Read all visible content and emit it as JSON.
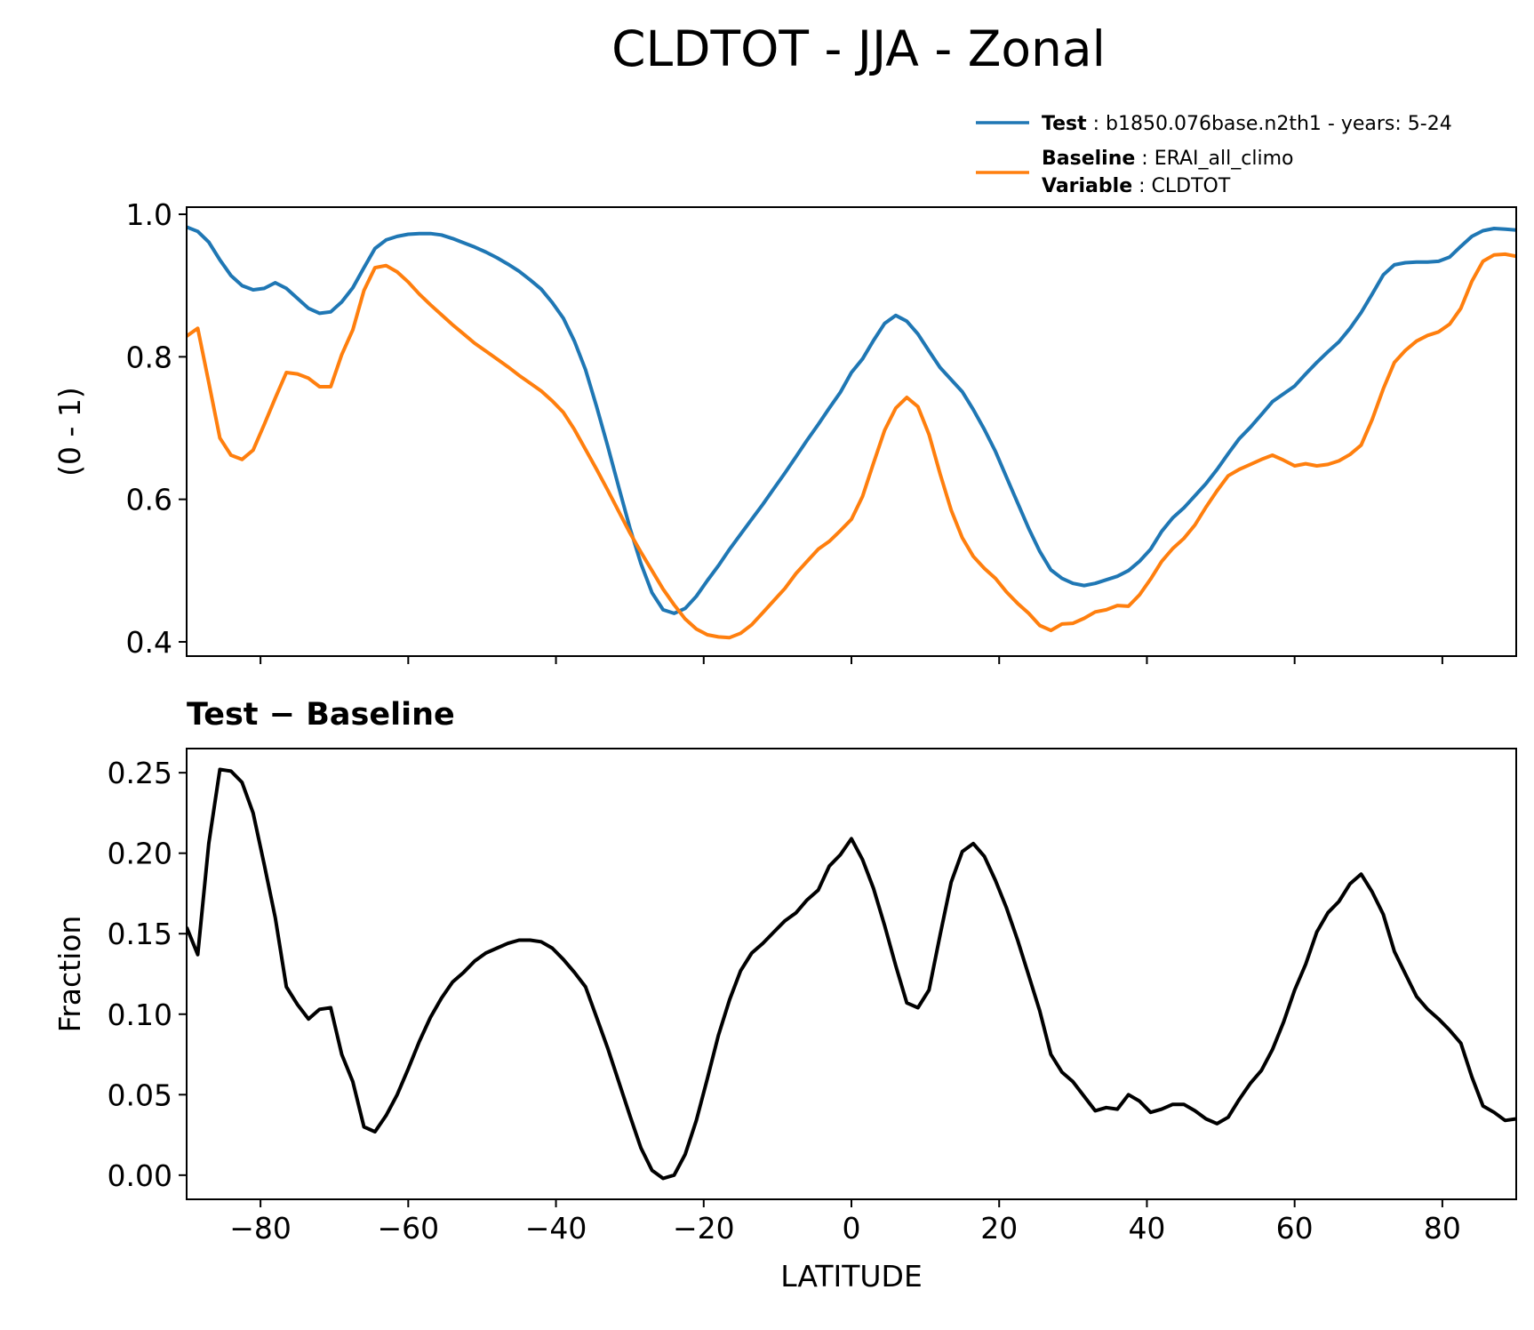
{
  "title": "CLDTOT - JJA - Zonal",
  "legend": {
    "placement": "upper-right",
    "entries": [
      {
        "lines": [
          {
            "key": "Test",
            "value": "b1850.076base.n2th1 - years: 5-24"
          }
        ]
      },
      {
        "lines": [
          {
            "key": "Baseline",
            "value": "ERAI_all_climo"
          },
          {
            "key": "Variable",
            "value": "CLDTOT"
          }
        ]
      }
    ]
  },
  "colors": {
    "test": "#1f77b4",
    "baseline": "#ff7f0e",
    "diff": "#000000"
  },
  "chart_data": [
    {
      "type": "line",
      "ylabel": "(0 - 1)",
      "xlim": [
        -90,
        90
      ],
      "ylim": [
        0.38,
        1.01
      ],
      "yticks": [
        0.4,
        0.6,
        0.8,
        1.0
      ],
      "ytick_labels": [
        "0.4",
        "0.6",
        "0.8",
        "1.0"
      ],
      "x": [
        -90,
        -88.5,
        -87,
        -85.5,
        -84,
        -82.5,
        -81,
        -79.5,
        -78,
        -76.5,
        -75,
        -73.5,
        -72,
        -70.5,
        -69,
        -67.5,
        -66,
        -64.5,
        -63,
        -61.5,
        -60,
        -58.5,
        -57,
        -55.5,
        -54,
        -52.5,
        -51,
        -49.5,
        -48,
        -46.5,
        -45,
        -43.5,
        -42,
        -40.5,
        -39,
        -37.5,
        -36,
        -34.5,
        -33,
        -31.5,
        -30,
        -28.5,
        -27,
        -25.5,
        -24,
        -22.5,
        -21,
        -19.5,
        -18,
        -16.5,
        -15,
        -13.5,
        -12,
        -10.5,
        -9,
        -7.5,
        -6,
        -4.5,
        -3,
        -1.5,
        0,
        1.5,
        3,
        4.5,
        6,
        7.5,
        9,
        10.5,
        12,
        13.5,
        15,
        16.5,
        18,
        19.5,
        21,
        22.5,
        24,
        25.5,
        27,
        28.5,
        30,
        31.5,
        33,
        34.5,
        36,
        37.5,
        39,
        40.5,
        42,
        43.5,
        45,
        46.5,
        48,
        49.5,
        51,
        52.5,
        54,
        55.5,
        57,
        58.5,
        60,
        61.5,
        63,
        64.5,
        66,
        67.5,
        69,
        70.5,
        72,
        73.5,
        75,
        76.5,
        78,
        79.5,
        81,
        82.5,
        84,
        85.5,
        87,
        88.5,
        90
      ],
      "series": [
        {
          "name": "Test",
          "color": "#1f77b4",
          "values": [
            0.982,
            0.976,
            0.961,
            0.936,
            0.914,
            0.9,
            0.894,
            0.896,
            0.904,
            0.896,
            0.882,
            0.868,
            0.861,
            0.863,
            0.877,
            0.897,
            0.925,
            0.952,
            0.964,
            0.969,
            0.972,
            0.973,
            0.973,
            0.971,
            0.966,
            0.96,
            0.954,
            0.947,
            0.939,
            0.93,
            0.92,
            0.908,
            0.895,
            0.876,
            0.854,
            0.822,
            0.782,
            0.73,
            0.675,
            0.617,
            0.56,
            0.51,
            0.469,
            0.445,
            0.44,
            0.447,
            0.464,
            0.486,
            0.507,
            0.53,
            0.551,
            0.572,
            0.593,
            0.615,
            0.637,
            0.66,
            0.683,
            0.705,
            0.728,
            0.75,
            0.778,
            0.797,
            0.823,
            0.847,
            0.858,
            0.85,
            0.832,
            0.808,
            0.785,
            0.768,
            0.751,
            0.726,
            0.698,
            0.667,
            0.631,
            0.595,
            0.559,
            0.527,
            0.501,
            0.489,
            0.482,
            0.479,
            0.482,
            0.487,
            0.492,
            0.5,
            0.513,
            0.53,
            0.555,
            0.574,
            0.588,
            0.605,
            0.622,
            0.642,
            0.664,
            0.685,
            0.701,
            0.719,
            0.737,
            0.748,
            0.759,
            0.776,
            0.792,
            0.807,
            0.821,
            0.84,
            0.862,
            0.888,
            0.915,
            0.929,
            0.932,
            0.933,
            0.933,
            0.934,
            0.94,
            0.955,
            0.969,
            0.977,
            0.98,
            0.979,
            0.978
          ]
        },
        {
          "name": "Baseline",
          "color": "#ff7f0e",
          "values": [
            0.829,
            0.84,
            0.764,
            0.686,
            0.662,
            0.656,
            0.669,
            0.705,
            0.742,
            0.778,
            0.776,
            0.77,
            0.758,
            0.758,
            0.803,
            0.838,
            0.893,
            0.925,
            0.928,
            0.919,
            0.905,
            0.888,
            0.873,
            0.859,
            0.845,
            0.832,
            0.819,
            0.808,
            0.797,
            0.786,
            0.774,
            0.763,
            0.752,
            0.738,
            0.722,
            0.698,
            0.67,
            0.642,
            0.613,
            0.583,
            0.553,
            0.526,
            0.5,
            0.474,
            0.452,
            0.432,
            0.418,
            0.41,
            0.407,
            0.406,
            0.412,
            0.424,
            0.441,
            0.458,
            0.475,
            0.496,
            0.513,
            0.53,
            0.541,
            0.556,
            0.572,
            0.604,
            0.651,
            0.697,
            0.728,
            0.743,
            0.73,
            0.691,
            0.636,
            0.585,
            0.546,
            0.52,
            0.503,
            0.489,
            0.47,
            0.454,
            0.44,
            0.423,
            0.416,
            0.425,
            0.426,
            0.433,
            0.442,
            0.445,
            0.451,
            0.45,
            0.466,
            0.488,
            0.513,
            0.531,
            0.545,
            0.564,
            0.589,
            0.612,
            0.633,
            0.642,
            0.649,
            0.656,
            0.662,
            0.655,
            0.647,
            0.65,
            0.647,
            0.649,
            0.654,
            0.663,
            0.676,
            0.712,
            0.755,
            0.792,
            0.809,
            0.822,
            0.83,
            0.835,
            0.846,
            0.868,
            0.906,
            0.934,
            0.943,
            0.944,
            0.941
          ]
        }
      ]
    },
    {
      "type": "line",
      "title": "Test − Baseline",
      "xlabel": "LATITUDE",
      "ylabel": "Fraction",
      "xlim": [
        -90,
        90
      ],
      "ylim": [
        -0.015,
        0.265
      ],
      "xticks": [
        -80,
        -60,
        -40,
        -20,
        0,
        20,
        40,
        60,
        80
      ],
      "xtick_labels": [
        "−80",
        "−60",
        "−40",
        "−20",
        "0",
        "20",
        "40",
        "60",
        "80"
      ],
      "yticks": [
        0.0,
        0.05,
        0.1,
        0.15,
        0.2,
        0.25
      ],
      "ytick_labels": [
        "0.00",
        "0.05",
        "0.10",
        "0.15",
        "0.20",
        "0.25"
      ],
      "series": [
        {
          "name": "",
          "color": "#000000",
          "values": [
            0.154,
            0.137,
            0.206,
            0.252,
            0.251,
            0.244,
            0.225,
            0.193,
            0.16,
            0.117,
            0.106,
            0.097,
            0.103,
            0.104,
            0.075,
            0.058,
            0.03,
            0.027,
            0.037,
            0.05,
            0.066,
            0.083,
            0.098,
            0.11,
            0.12,
            0.126,
            0.133,
            0.138,
            0.141,
            0.144,
            0.146,
            0.146,
            0.145,
            0.141,
            0.134,
            0.126,
            0.117,
            0.098,
            0.079,
            0.058,
            0.037,
            0.017,
            0.003,
            -0.002,
            0.0,
            0.013,
            0.034,
            0.06,
            0.087,
            0.109,
            0.127,
            0.138,
            0.144,
            0.151,
            0.158,
            0.163,
            0.171,
            0.177,
            0.192,
            0.199,
            0.209,
            0.196,
            0.178,
            0.155,
            0.13,
            0.107,
            0.104,
            0.115,
            0.149,
            0.182,
            0.201,
            0.206,
            0.198,
            0.183,
            0.166,
            0.146,
            0.124,
            0.102,
            0.075,
            0.064,
            0.058,
            0.049,
            0.04,
            0.042,
            0.041,
            0.05,
            0.046,
            0.039,
            0.041,
            0.044,
            0.044,
            0.04,
            0.035,
            0.032,
            0.036,
            0.047,
            0.057,
            0.065,
            0.078,
            0.095,
            0.115,
            0.131,
            0.151,
            0.163,
            0.17,
            0.181,
            0.187,
            0.176,
            0.162,
            0.139,
            0.125,
            0.111,
            0.103,
            0.097,
            0.09,
            0.082,
            0.061,
            0.043,
            0.039,
            0.034,
            0.035
          ]
        }
      ]
    }
  ]
}
